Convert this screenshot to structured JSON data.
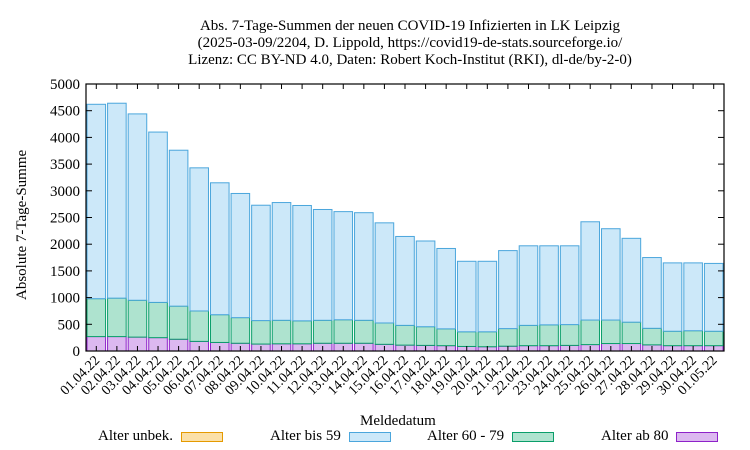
{
  "title_lines": [
    "Abs. 7-Tage-Summen der neuen COVID-19 Infizierten in LK Leipzig",
    "(2025-03-09/2204, D. Lippold, https://covid19-de-stats.sourceforge.io/",
    "Lizenz: CC BY-ND 4.0, Daten: Robert Koch-Institut (RKI), dl-de/by-2-0)"
  ],
  "chart_data": {
    "type": "bar",
    "stacked": true,
    "title": "Abs. 7-Tage-Summen der neuen COVID-19 Infizierten in LK Leipzig",
    "xlabel": "Meldedatum",
    "ylabel": "Absolute 7-Tage-Summe",
    "ylim": [
      0,
      5000
    ],
    "yticks": [
      0,
      500,
      1000,
      1500,
      2000,
      2500,
      3000,
      3500,
      4000,
      4500,
      5000
    ],
    "categories": [
      "01.04.22",
      "02.04.22",
      "03.04.22",
      "04.04.22",
      "05.04.22",
      "06.04.22",
      "07.04.22",
      "08.04.22",
      "09.04.22",
      "10.04.22",
      "11.04.22",
      "12.04.22",
      "13.04.22",
      "14.04.22",
      "15.04.22",
      "16.04.22",
      "17.04.22",
      "18.04.22",
      "19.04.22",
      "20.04.22",
      "21.04.22",
      "22.04.22",
      "23.04.22",
      "24.04.22",
      "25.04.22",
      "26.04.22",
      "27.04.22",
      "28.04.22",
      "29.04.22",
      "30.04.22",
      "01.05.22"
    ],
    "series": [
      {
        "name": "Alter ab 80",
        "color": "#dcb8f0",
        "stroke": "#8e22c9",
        "values": [
          270,
          270,
          260,
          250,
          220,
          180,
          160,
          145,
          130,
          135,
          135,
          145,
          145,
          145,
          125,
          110,
          105,
          100,
          85,
          80,
          90,
          100,
          100,
          105,
          120,
          140,
          140,
          115,
          100,
          100,
          100
        ]
      },
      {
        "name": "Alter 60 - 79",
        "color": "#aee3cf",
        "stroke": "#0a9e6a",
        "values": [
          710,
          720,
          690,
          660,
          620,
          570,
          520,
          480,
          440,
          440,
          430,
          430,
          440,
          430,
          400,
          370,
          350,
          315,
          275,
          280,
          330,
          380,
          390,
          390,
          460,
          440,
          400,
          310,
          270,
          280,
          270
        ]
      },
      {
        "name": "Alter bis 59",
        "color": "#cce8f9",
        "stroke": "#4ba6dc",
        "values": [
          3640,
          3650,
          3490,
          3190,
          2920,
          2680,
          2470,
          2325,
          2160,
          2205,
          2160,
          2075,
          2025,
          2015,
          1875,
          1665,
          1605,
          1505,
          1320,
          1320,
          1460,
          1490,
          1480,
          1475,
          1840,
          1710,
          1570,
          1325,
          1280,
          1270,
          1270
        ]
      },
      {
        "name": "Alter unbek.",
        "color": "#fbe0a8",
        "stroke": "#e59a00",
        "values": [
          0,
          0,
          0,
          0,
          0,
          0,
          0,
          0,
          0,
          0,
          0,
          0,
          0,
          0,
          0,
          0,
          0,
          0,
          0,
          0,
          0,
          0,
          0,
          0,
          0,
          0,
          0,
          0,
          0,
          0,
          0
        ]
      }
    ],
    "legend": [
      "Alter unbek.",
      "Alter bis 59",
      "Alter 60 - 79",
      "Alter ab 80"
    ],
    "legend_position": "bottom"
  }
}
